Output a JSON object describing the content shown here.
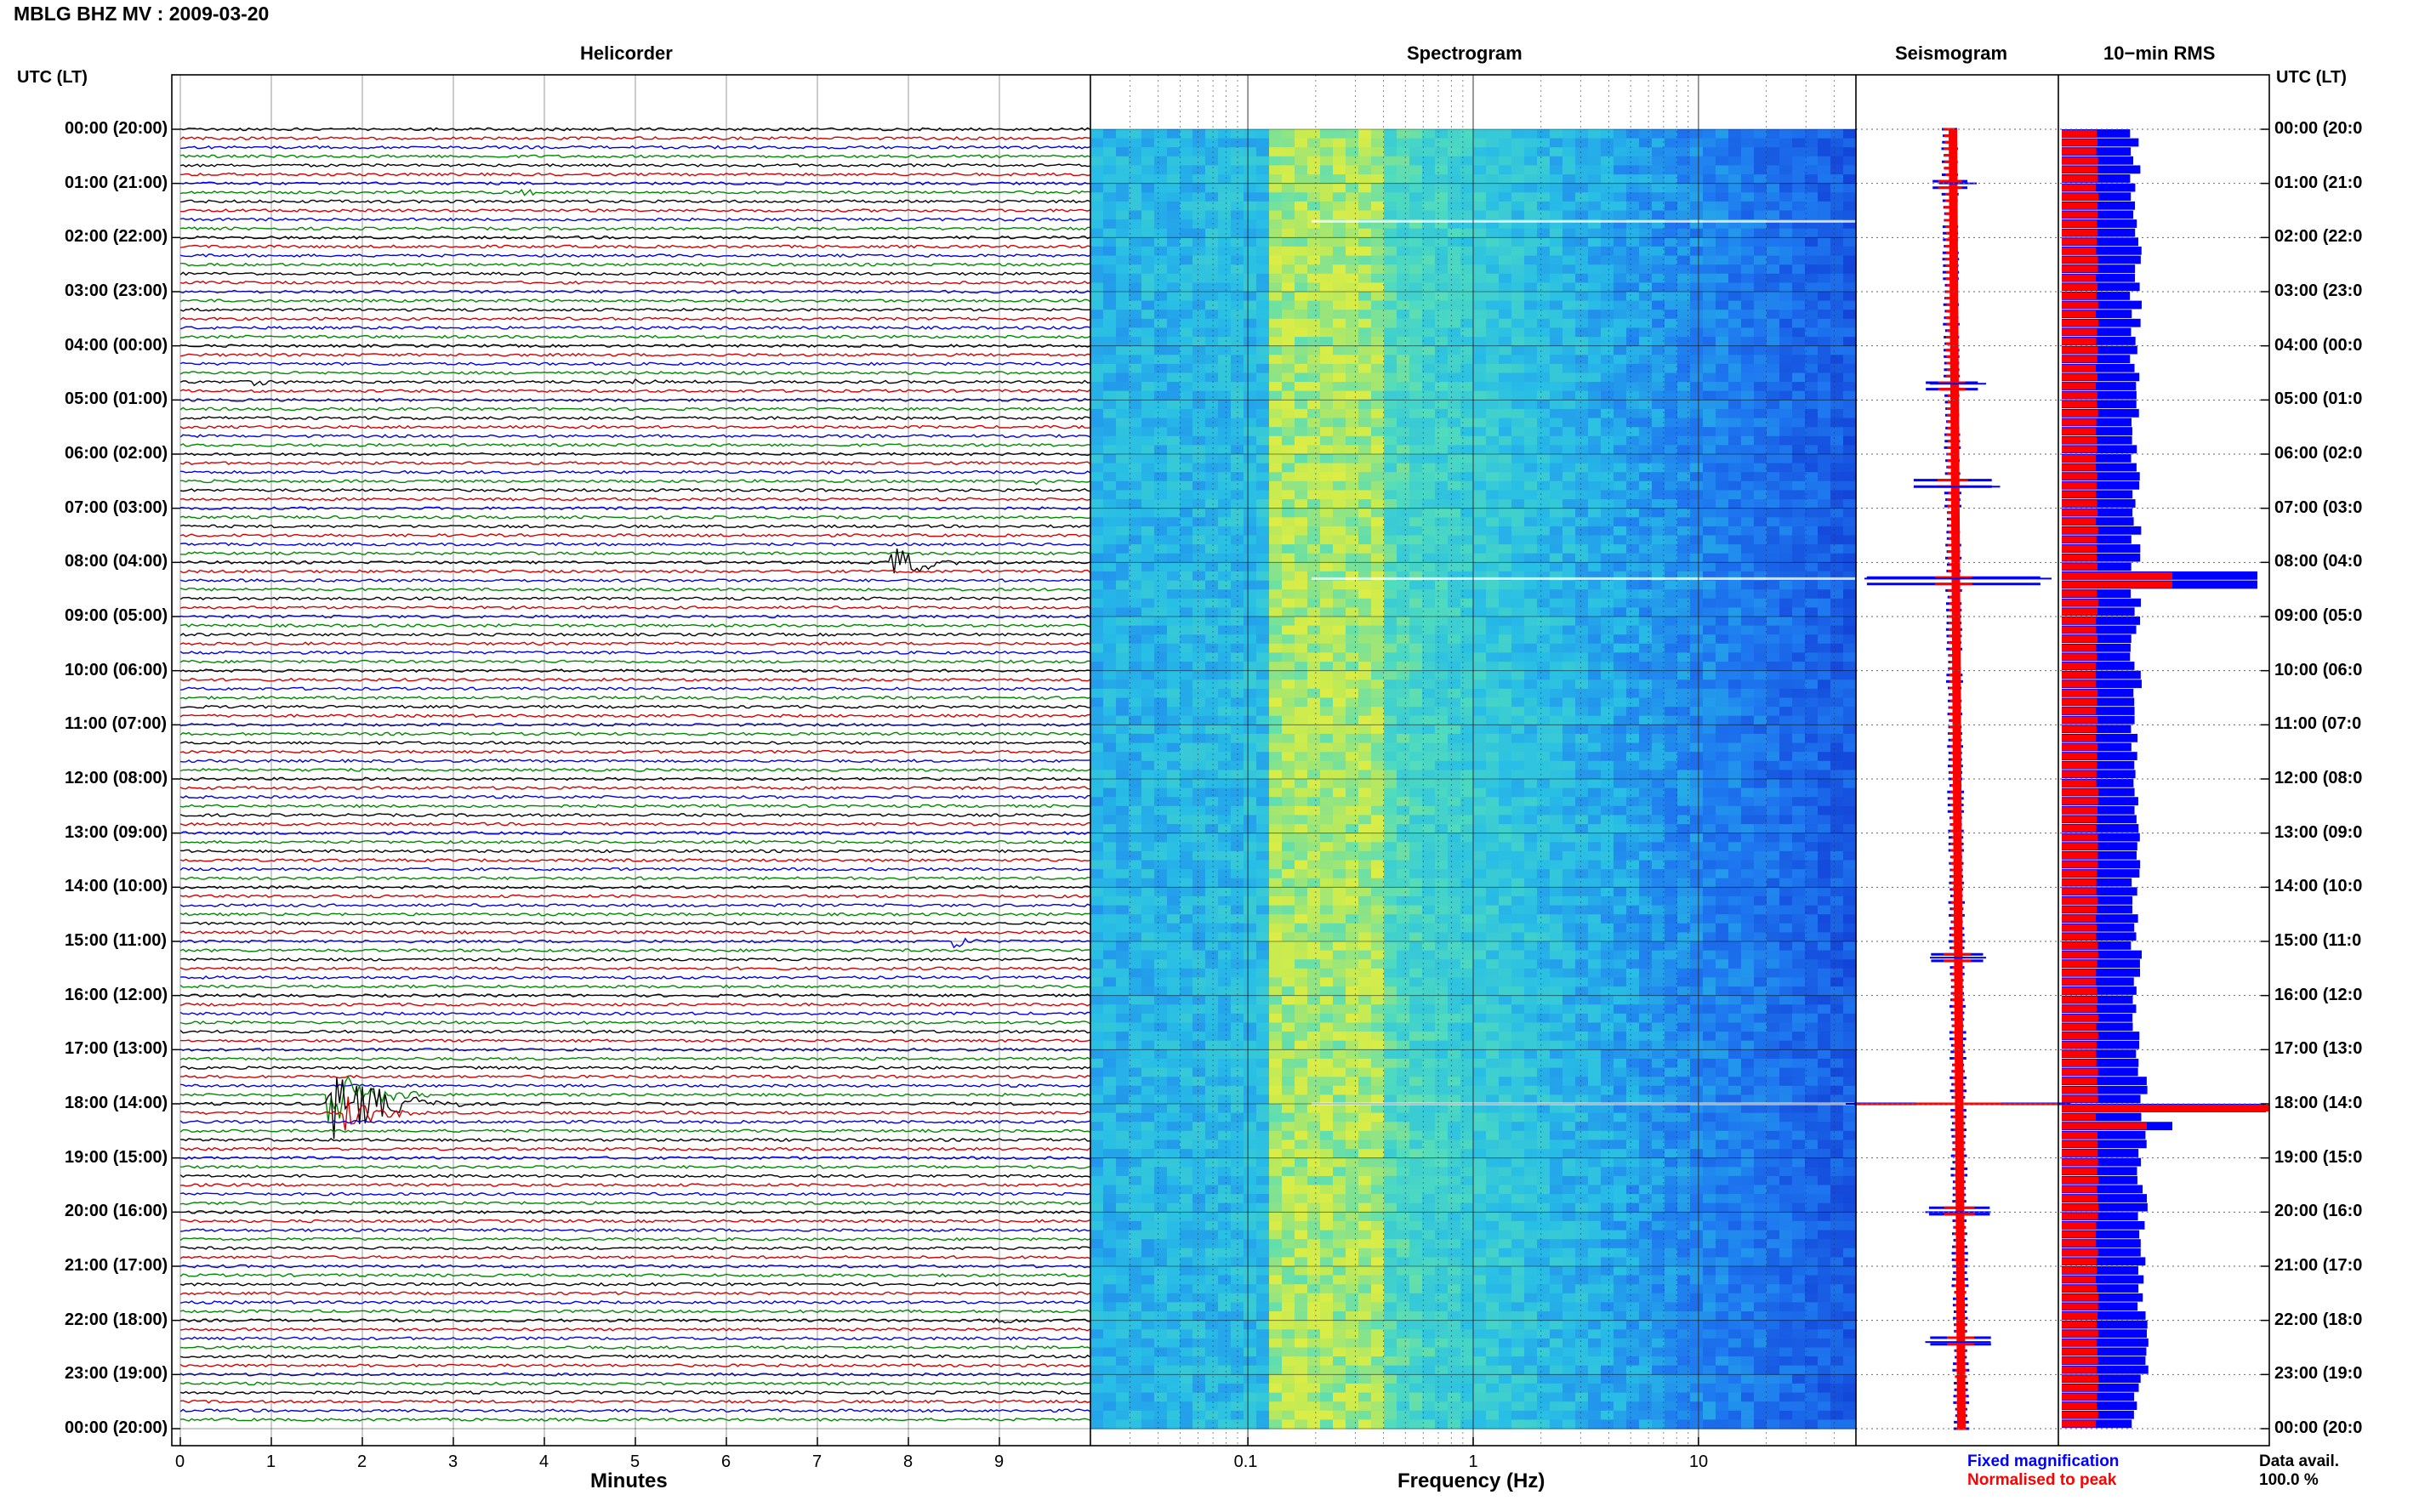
{
  "header": {
    "station_title": "MBLG BHZ MV : 2009-03-20",
    "left_axis_label": "UTC (LT)",
    "right_axis_label": "UTC (LT)"
  },
  "panels": {
    "helicorder": "Helicorder",
    "spectrogram": "Spectrogram",
    "seismogram": "Seismogram",
    "rms": "10−min RMS"
  },
  "time_labels": [
    "00:00 (20:00)",
    "01:00 (21:00)",
    "02:00 (22:00)",
    "03:00 (23:00)",
    "04:00 (00:00)",
    "05:00 (01:00)",
    "06:00 (02:00)",
    "07:00 (03:00)",
    "08:00 (04:00)",
    "09:00 (05:00)",
    "10:00 (06:00)",
    "11:00 (07:00)",
    "12:00 (08:00)",
    "13:00 (09:00)",
    "14:00 (10:00)",
    "15:00 (11:00)",
    "16:00 (12:00)",
    "17:00 (13:00)",
    "18:00 (14:00)",
    "19:00 (15:00)",
    "20:00 (16:00)",
    "21:00 (17:00)",
    "22:00 (18:00)",
    "23:00 (19:00)",
    "00:00 (20:00)"
  ],
  "right_time_labels": [
    "00:00 (20:0",
    "01:00 (21:0",
    "02:00 (22:0",
    "03:00 (23:0",
    "04:00 (00:0",
    "05:00 (01:0",
    "06:00 (02:0",
    "07:00 (03:0",
    "08:00 (04:0",
    "09:00 (05:0",
    "10:00 (06:0",
    "11:00 (07:0",
    "12:00 (08:0",
    "13:00 (09:0",
    "14:00 (10:0",
    "15:00 (11:0",
    "16:00 (12:0",
    "17:00 (13:0",
    "18:00 (14:0",
    "19:00 (15:0",
    "20:00 (16:0",
    "21:00 (17:0",
    "22:00 (18:0",
    "23:00 (19:0",
    "00:00 (20:0"
  ],
  "footer": {
    "minutes_label": "Minutes",
    "frequency_label": "Frequency (Hz)",
    "legend_fixed": "Fixed magnification",
    "legend_normalised": "Normalised to peak",
    "data_avail_label": "Data avail.",
    "data_avail_value": "100.0 %"
  },
  "colors": {
    "trace_cycle": [
      "#000000",
      "#d40000",
      "#0000e0",
      "#008800"
    ],
    "fixed": "#0000ff",
    "normalised": "#ff0000"
  },
  "chart_data": {
    "type": "helicorder",
    "date": "2009-03-20",
    "station": "MBLG",
    "channel": "BHZ",
    "network": "MV",
    "helicorder": {
      "x_ticks": [
        0,
        1,
        2,
        3,
        4,
        5,
        6,
        7,
        8,
        9
      ],
      "xlim": [
        0,
        10
      ],
      "lines_per_hour": 6,
      "hours": 24,
      "events": [
        {
          "hour": 1,
          "line": 1,
          "minute": 3.7,
          "amp": 1.2,
          "dur": 0.5
        },
        {
          "hour": 4,
          "line": 4,
          "minute": 0.8,
          "amp": 1.2,
          "dur": 0.8
        },
        {
          "hour": 4,
          "line": 4,
          "minute": 4.9,
          "amp": 1.2,
          "dur": 1.0
        },
        {
          "hour": 6,
          "line": 3,
          "minute": 9.3,
          "amp": 2.5,
          "dur": 0.4
        },
        {
          "hour": 8,
          "line": 0,
          "minute": 7.8,
          "amp": 7,
          "dur": 0.9
        },
        {
          "hour": 15,
          "line": 0,
          "minute": 8.5,
          "amp": 3,
          "dur": 0.4
        },
        {
          "hour": 17,
          "line": 5,
          "minute": 1.6,
          "amp": 10,
          "dur": 1.2
        },
        {
          "hour": 18,
          "line": 0,
          "minute": 1.6,
          "amp": 14,
          "dur": 1.5
        },
        {
          "hour": 18,
          "line": 1,
          "minute": 1.8,
          "amp": 6,
          "dur": 1.0
        },
        {
          "hour": 22,
          "line": 0,
          "minute": 8.9,
          "amp": 3,
          "dur": 0.7
        }
      ]
    },
    "spectrogram": {
      "x_scale": "log",
      "x_ticks": [
        0.1,
        1,
        10
      ],
      "xlim": [
        0.02,
        50
      ]
    },
    "seismogram": {
      "spikes": [
        {
          "hour": 1.0,
          "fixed": 0.2,
          "norm": 0.1
        },
        {
          "hour": 4.7,
          "fixed": 0.3,
          "norm": 0.15
        },
        {
          "hour": 6.6,
          "fixed": 0.45,
          "norm": 0.2
        },
        {
          "hour": 8.3,
          "fixed": 1.0,
          "norm": 0.3
        },
        {
          "hour": 15.3,
          "fixed": 0.3,
          "norm": 0.15
        },
        {
          "hour": 18.0,
          "fixed": 1.2,
          "norm": 1.0
        },
        {
          "hour": 20.0,
          "fixed": 0.35,
          "norm": 0.2
        },
        {
          "hour": 22.4,
          "fixed": 0.35,
          "norm": 0.15
        }
      ]
    },
    "rms": {
      "peaks": [
        {
          "hour": 8.25,
          "fixed": 0.95,
          "norm": 0.3
        },
        {
          "hour": 18.0,
          "fixed": 1.0,
          "norm": 1.0
        },
        {
          "hour": 18.33,
          "fixed": 0.45,
          "norm": 0.2
        }
      ]
    }
  }
}
